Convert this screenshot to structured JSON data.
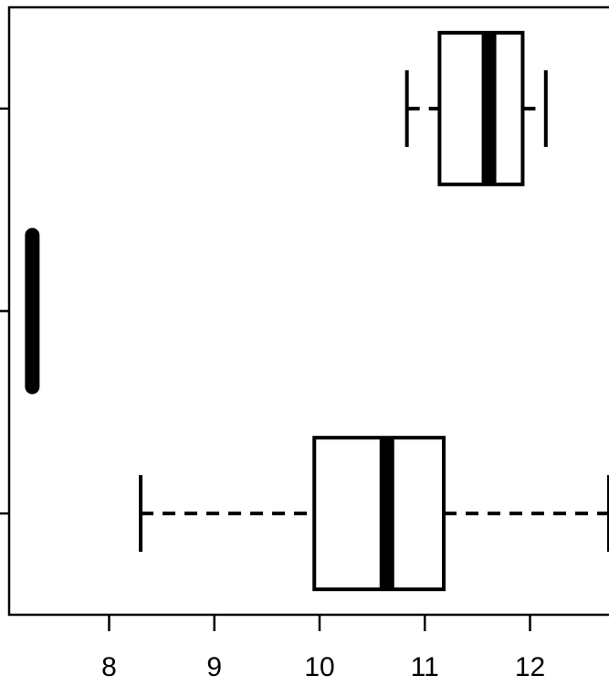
{
  "chart_data": {
    "type": "boxplot",
    "orientation": "horizontal",
    "title": "",
    "xlabel": "",
    "ylabel": "",
    "xlim": [
      7.05,
      12.95
    ],
    "x_ticks": [
      8,
      9,
      10,
      11,
      12
    ],
    "x_tick_labels": [
      "8",
      "9",
      "10",
      "11",
      "12"
    ],
    "grid": false,
    "legend": "none",
    "colors": {
      "stroke": "#000000",
      "box_fill": "#ffffff",
      "background": "#ffffff"
    },
    "boxes": [
      {
        "position": 1,
        "whisker_low": 8.3,
        "q1": 9.95,
        "median": 10.64,
        "q3": 11.18,
        "whisker_high": 12.75
      },
      {
        "position": 2,
        "whisker_low": 7.27,
        "q1": 7.27,
        "median": 7.27,
        "q3": 7.27,
        "whisker_high": 7.27
      },
      {
        "position": 3,
        "whisker_low": 10.83,
        "q1": 11.14,
        "median": 11.61,
        "q3": 11.93,
        "whisker_high": 12.15
      }
    ]
  }
}
